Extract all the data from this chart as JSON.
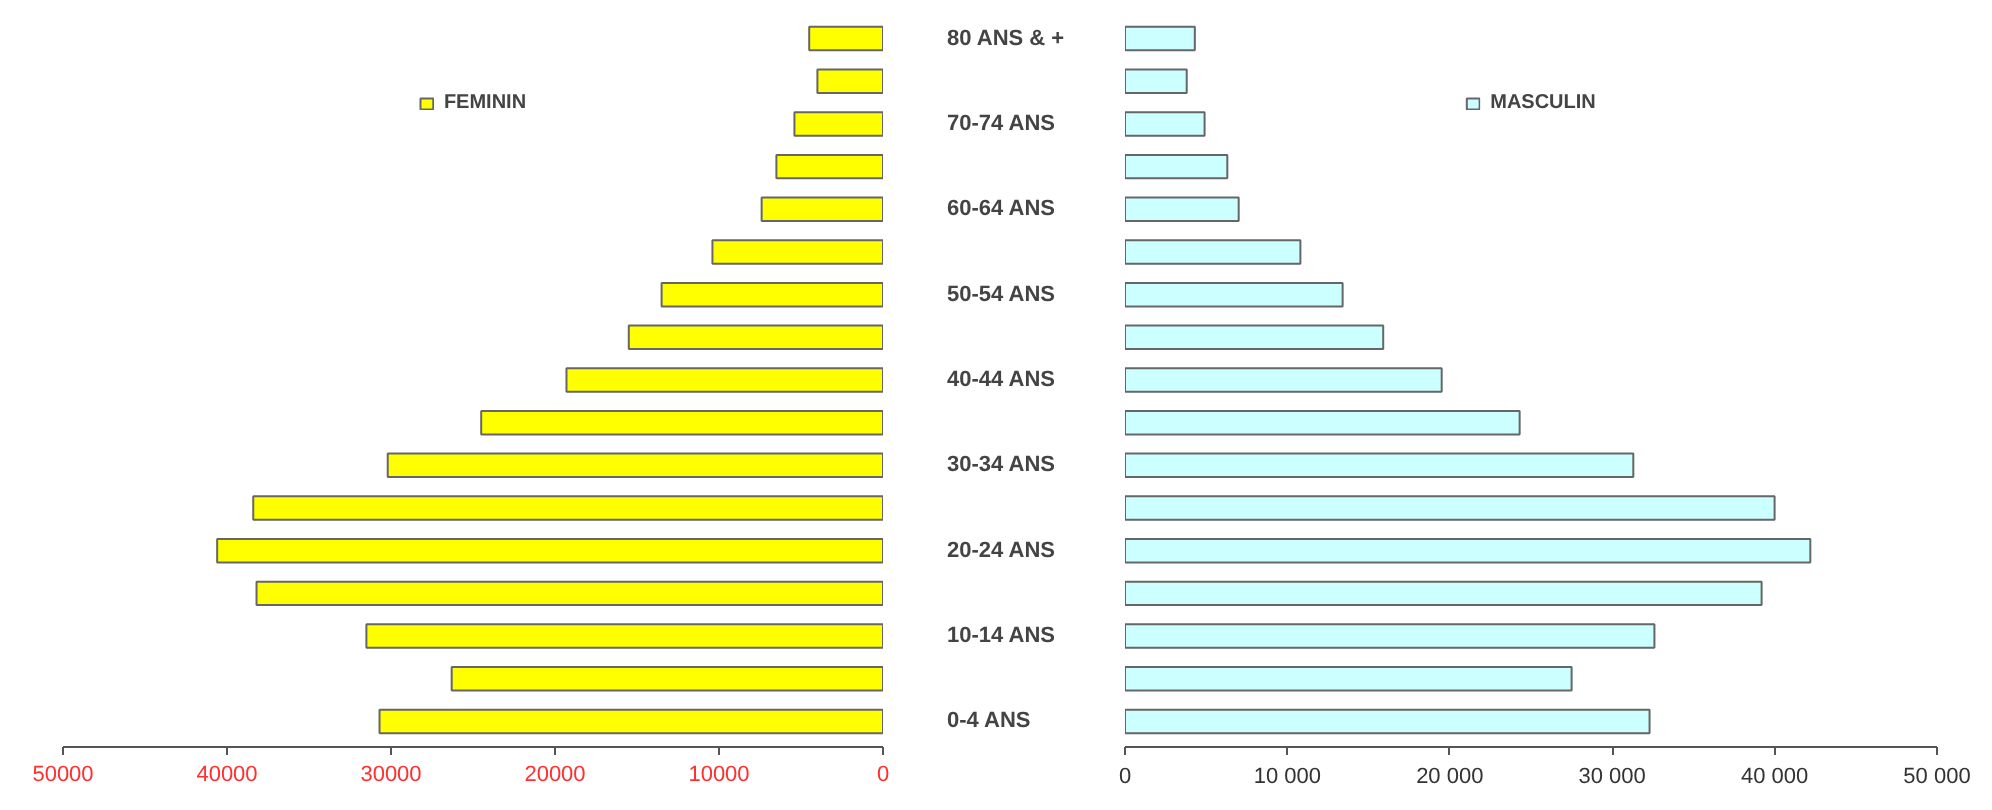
{
  "chart_data": [
    {
      "type": "bar",
      "orientation": "horizontal",
      "categories": [
        "80 ANS & +",
        null,
        "70-74 ANS",
        null,
        "60-64 ANS",
        null,
        "50-54 ANS",
        null,
        "40-44 ANS",
        null,
        "30-34 ANS",
        null,
        "20-24 ANS",
        null,
        "10-14 ANS",
        null,
        "0-4 ANS"
      ],
      "xlim": [
        50000,
        0
      ],
      "xticks": [
        50000,
        40000,
        30000,
        20000,
        10000,
        0
      ],
      "legend": "top",
      "grid": false,
      "series": [
        {
          "name": "FEMININ",
          "color": "#ffff00",
          "values": [
            4500,
            4000,
            5400,
            6500,
            7400,
            10400,
            13500,
            15500,
            19300,
            24500,
            30200,
            38400,
            40600,
            38200,
            31500,
            26300,
            30700
          ]
        }
      ]
    },
    {
      "type": "bar",
      "orientation": "horizontal",
      "categories": [
        null,
        null,
        null,
        null,
        null,
        null,
        null,
        null,
        null,
        null,
        null,
        null,
        null,
        null,
        null,
        null,
        null
      ],
      "tick_labels": "x",
      "xlim": [
        0,
        50000
      ],
      "xticks": [
        0,
        {
          "value": 10000,
          "label": "10 000"
        },
        {
          "value": 20000,
          "label": "20 000"
        },
        {
          "value": 30000,
          "label": "30 000"
        },
        {
          "value": 40000,
          "label": "40 000"
        },
        {
          "value": 50000,
          "label": "50 000"
        }
      ],
      "legend": "top",
      "grid": false,
      "series": [
        {
          "name": "MASCULIN",
          "color": "#ccffff",
          "values": [
            4300,
            3800,
            4900,
            6300,
            7000,
            10800,
            13400,
            15900,
            19500,
            24300,
            31300,
            40000,
            42200,
            39200,
            32600,
            27500,
            32300
          ]
        }
      ]
    }
  ]
}
